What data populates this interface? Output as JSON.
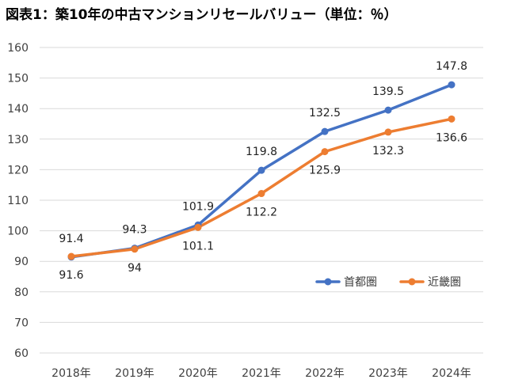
{
  "chart_data": {
    "type": "line",
    "title": "図表1：築10年の中古マンションリセールバリュー（単位：％）",
    "xlabel": "",
    "ylabel": "",
    "categories": [
      "2018年",
      "2019年",
      "2020年",
      "2021年",
      "2022年",
      "2023年",
      "2024年"
    ],
    "ylim": [
      60,
      160
    ],
    "yticks": [
      60,
      70,
      80,
      90,
      100,
      110,
      120,
      130,
      140,
      150,
      160
    ],
    "grid": true,
    "legend_position": "lower-right",
    "series": [
      {
        "name": "首都圏",
        "color": "#4472C4",
        "label_position": "above",
        "values": [
          91.4,
          94.3,
          101.9,
          119.8,
          132.5,
          139.5,
          147.8
        ]
      },
      {
        "name": "近畿圏",
        "color": "#ED7D31",
        "label_position": "below",
        "values": [
          91.6,
          94,
          101.1,
          112.2,
          125.9,
          132.3,
          136.6
        ]
      }
    ]
  }
}
